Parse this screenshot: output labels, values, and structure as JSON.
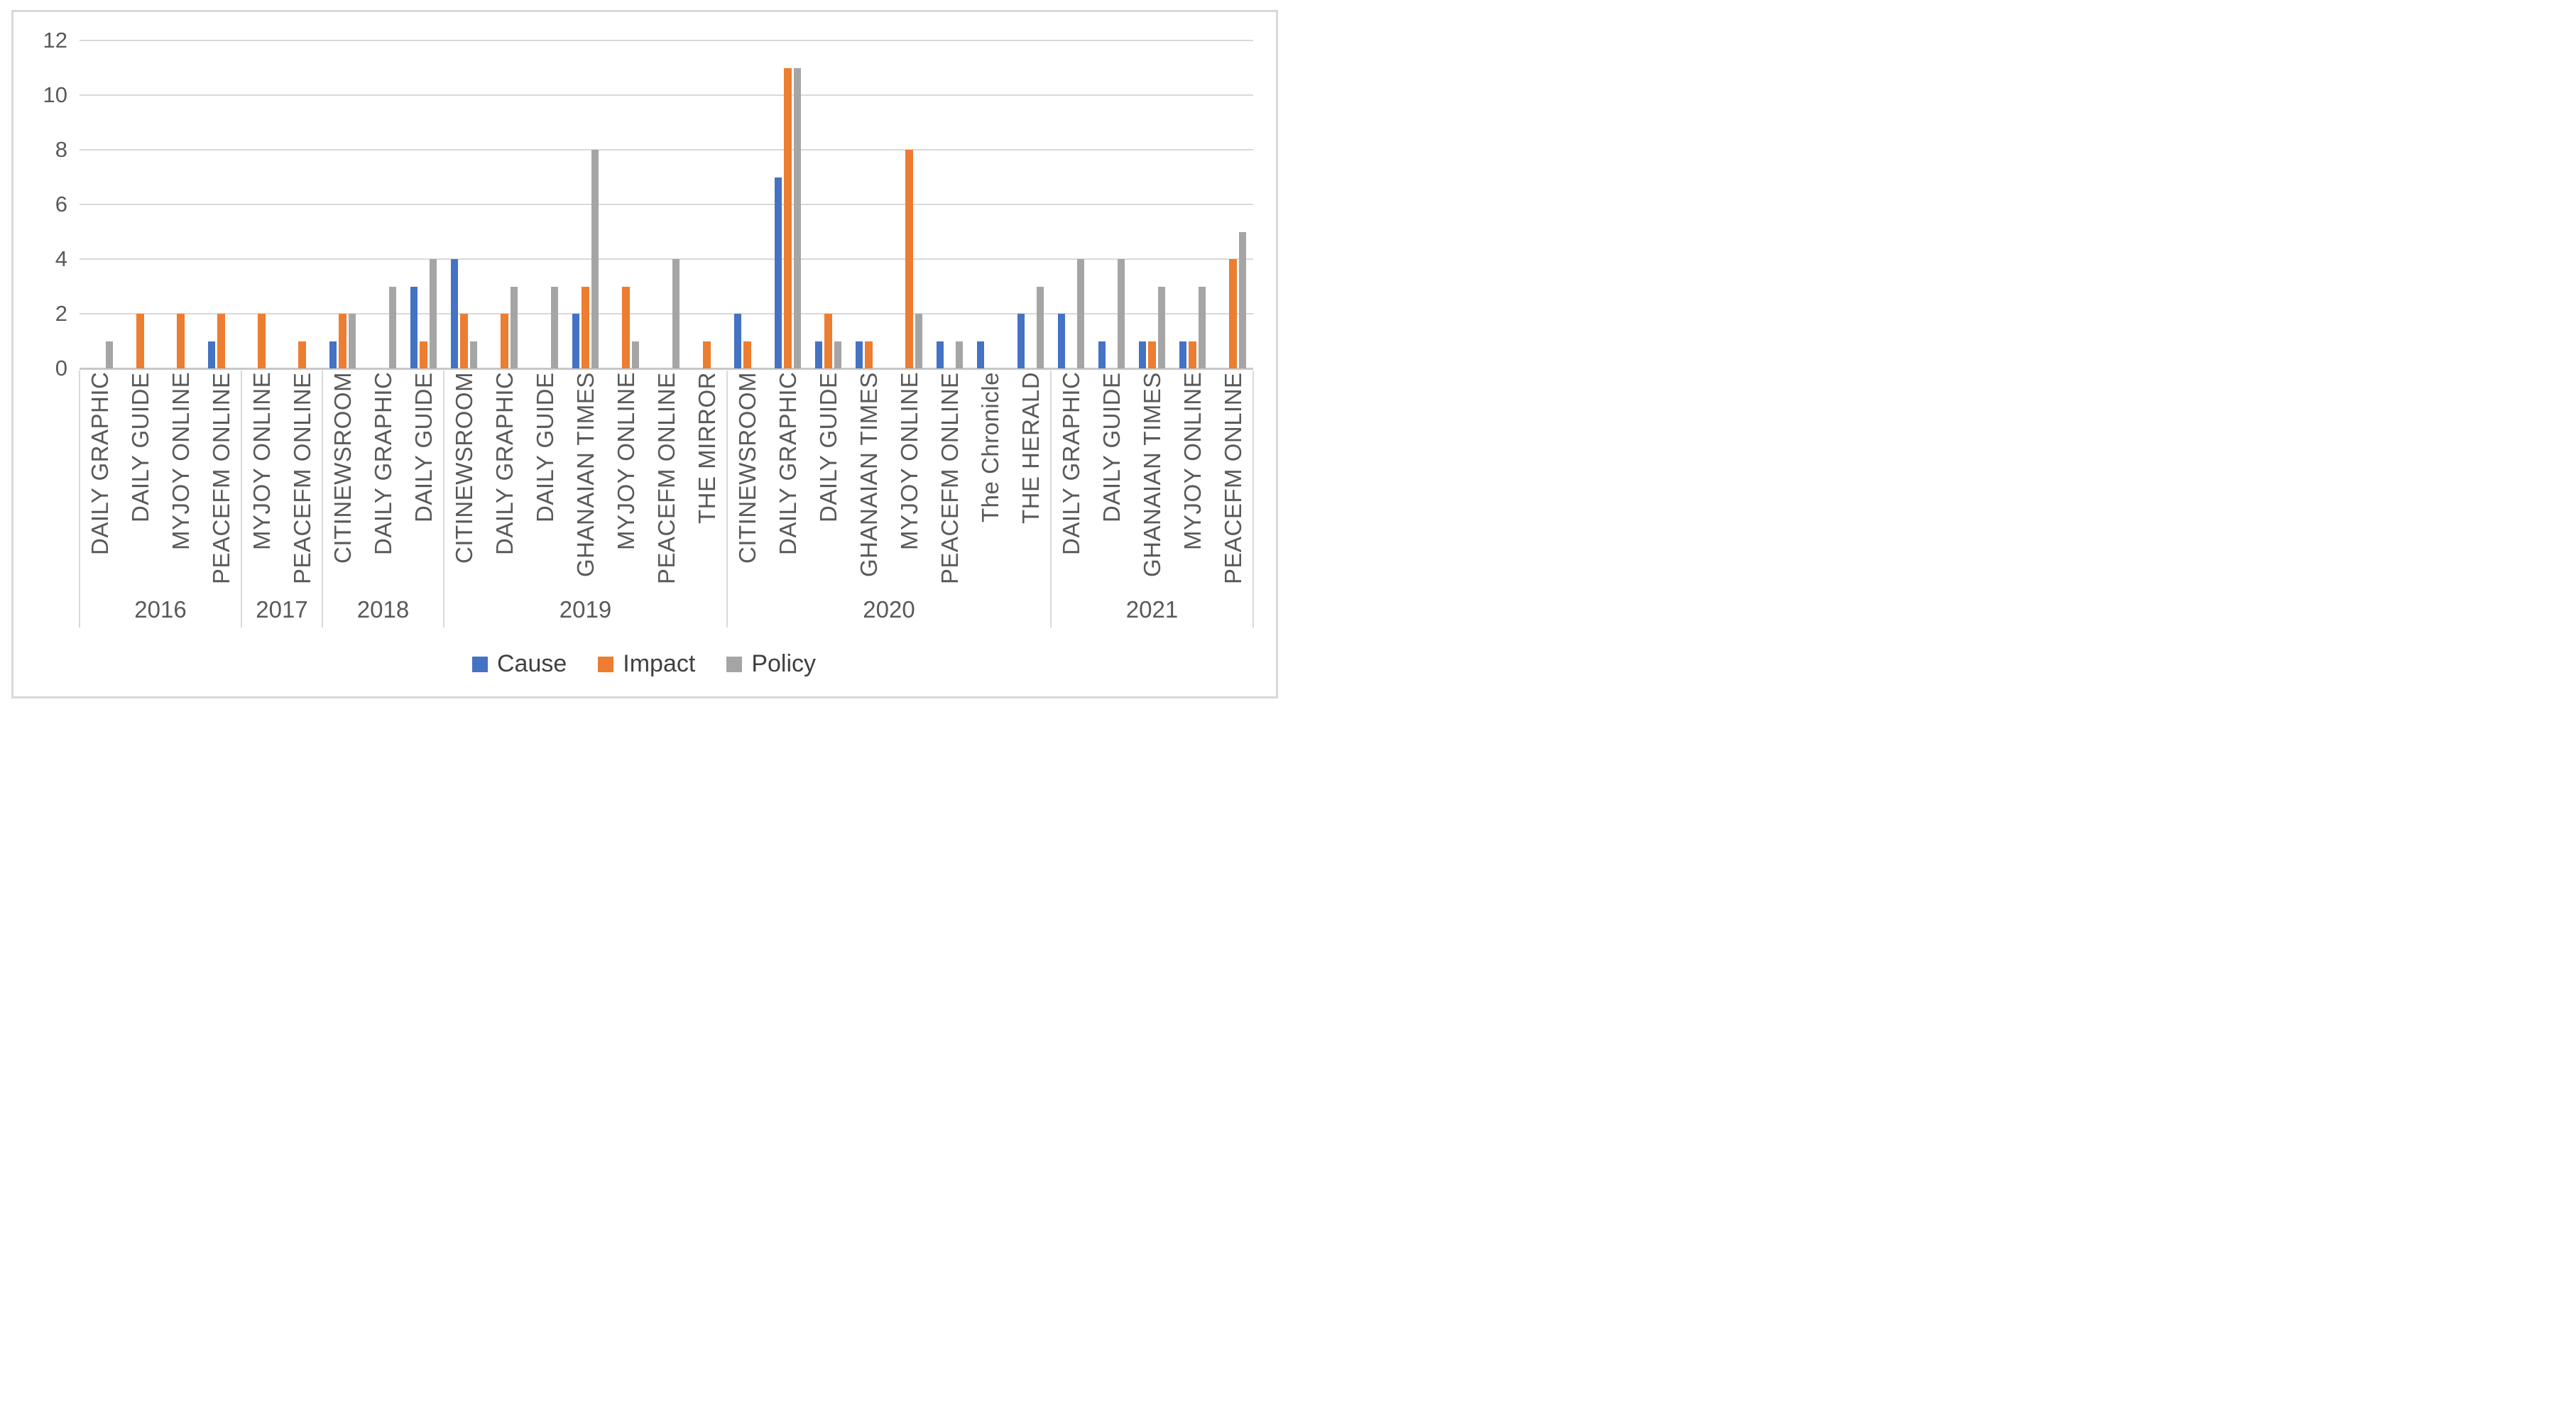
{
  "chart_data": {
    "type": "bar",
    "title": "",
    "xlabel": "",
    "ylabel": "",
    "ylim": [
      0,
      12
    ],
    "yticks": [
      0,
      2,
      4,
      6,
      8,
      10,
      12
    ],
    "grid": true,
    "legend_position": "bottom",
    "series": [
      {
        "name": "Cause",
        "color": "#4472C4"
      },
      {
        "name": "Impact",
        "color": "#ED7D31"
      },
      {
        "name": "Policy",
        "color": "#A5A5A5"
      }
    ],
    "groups": [
      {
        "year": "2016",
        "categories": [
          {
            "label": "DAILY GRAPHIC",
            "values": [
              0,
              0,
              1
            ]
          },
          {
            "label": "DAILY GUIDE",
            "values": [
              0,
              2,
              0
            ]
          },
          {
            "label": "MYJOY ONLINE",
            "values": [
              0,
              2,
              0
            ]
          },
          {
            "label": "PEACEFM ONLINE",
            "values": [
              1,
              2,
              0
            ]
          }
        ]
      },
      {
        "year": "2017",
        "categories": [
          {
            "label": "MYJOY ONLINE",
            "values": [
              0,
              2,
              0
            ]
          },
          {
            "label": "PEACEFM ONLINE",
            "values": [
              0,
              1,
              0
            ]
          }
        ]
      },
      {
        "year": "2018",
        "categories": [
          {
            "label": "CITINEWSROOM",
            "values": [
              1,
              2,
              2
            ]
          },
          {
            "label": "DAILY GRAPHIC",
            "values": [
              0,
              0,
              3
            ]
          },
          {
            "label": "DAILY GUIDE",
            "values": [
              3,
              1,
              4
            ]
          }
        ]
      },
      {
        "year": "2019",
        "categories": [
          {
            "label": "CITINEWSROOM",
            "values": [
              4,
              2,
              1
            ]
          },
          {
            "label": "DAILY GRAPHIC",
            "values": [
              0,
              2,
              3
            ]
          },
          {
            "label": "DAILY GUIDE",
            "values": [
              0,
              0,
              3
            ]
          },
          {
            "label": "GHANAIAN TIMES",
            "values": [
              2,
              3,
              8
            ]
          },
          {
            "label": "MYJOY ONLINE",
            "values": [
              0,
              3,
              1
            ]
          },
          {
            "label": "PEACEFM ONLINE",
            "values": [
              0,
              0,
              4
            ]
          },
          {
            "label": "THE MIRROR",
            "values": [
              0,
              1,
              0
            ]
          }
        ]
      },
      {
        "year": "2020",
        "categories": [
          {
            "label": "CITINEWSROOM",
            "values": [
              2,
              1,
              0
            ]
          },
          {
            "label": "DAILY GRAPHIC",
            "values": [
              7,
              11,
              11
            ]
          },
          {
            "label": "DAILY GUIDE",
            "values": [
              1,
              2,
              1
            ]
          },
          {
            "label": "GHANAIAN TIMES",
            "values": [
              1,
              1,
              0
            ]
          },
          {
            "label": "MYJOY ONLINE",
            "values": [
              0,
              8,
              2
            ]
          },
          {
            "label": "PEACEFM ONLINE",
            "values": [
              1,
              0,
              1
            ]
          },
          {
            "label": "The Chronicle",
            "values": [
              1,
              0,
              0
            ]
          },
          {
            "label": "THE HERALD",
            "values": [
              2,
              0,
              3
            ]
          }
        ]
      },
      {
        "year": "2021",
        "categories": [
          {
            "label": "DAILY GRAPHIC",
            "values": [
              2,
              0,
              4
            ]
          },
          {
            "label": "DAILY GUIDE",
            "values": [
              1,
              0,
              4
            ]
          },
          {
            "label": "GHANAIAN TIMES",
            "values": [
              1,
              1,
              3
            ]
          },
          {
            "label": "MYJOY ONLINE",
            "values": [
              1,
              1,
              3
            ]
          },
          {
            "label": "PEACEFM ONLINE",
            "values": [
              0,
              4,
              5
            ]
          }
        ]
      }
    ]
  },
  "colors": {
    "grid": "#D9D9D9",
    "axis": "#C8C8C8",
    "border": "#D9D9D9",
    "tick_text": "#595959",
    "legend_text": "#404040",
    "background": "#FFFFFF"
  }
}
